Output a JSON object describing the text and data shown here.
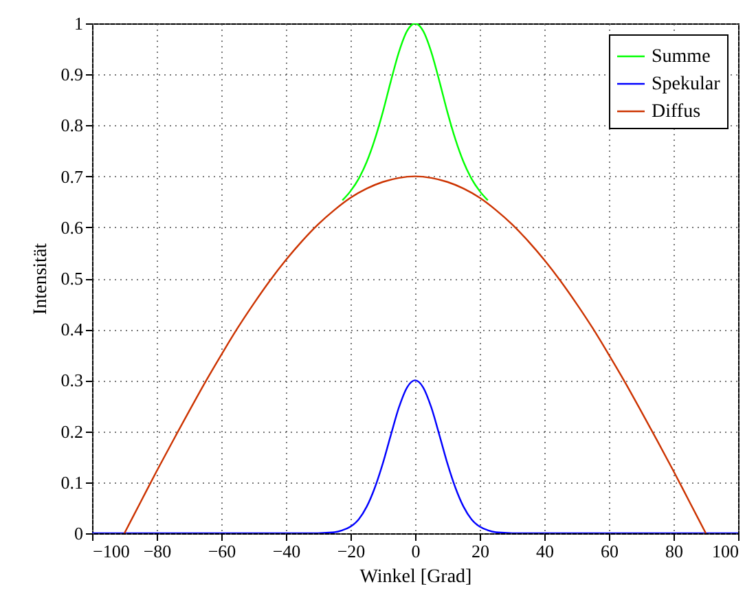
{
  "chart_data": {
    "type": "line",
    "xlabel": "Winkel [Grad]",
    "ylabel": "Intensität",
    "xlim": [
      -100,
      100
    ],
    "xticks": [
      -100,
      -80,
      -60,
      -40,
      -20,
      0,
      20,
      40,
      60,
      80,
      100
    ],
    "ylim": [
      0,
      1
    ],
    "yticks": [
      {
        "value": 0,
        "label": "0"
      },
      0.1,
      0.2,
      0.3,
      0.4,
      0.5,
      0.6,
      0.7,
      0.8,
      0.9,
      {
        "value": 1,
        "label": "1"
      }
    ],
    "grid": true,
    "legend": "top right",
    "marker": "none",
    "line_style": "solid",
    "series": [
      {
        "name": "Summe",
        "color": "#00ff00",
        "x": [
          -22.5,
          -20,
          -17.5,
          -15,
          -12.5,
          -10,
          -7.5,
          -5,
          -2.5,
          0,
          2.5,
          5,
          7.5,
          10,
          12.5,
          15,
          17.5,
          20,
          22.5
        ],
        "values": [
          0.653,
          0.671,
          0.695,
          0.728,
          0.772,
          0.826,
          0.887,
          0.944,
          0.985,
          1,
          0.985,
          0.944,
          0.887,
          0.826,
          0.772,
          0.728,
          0.695,
          0.671,
          0.653
        ]
      },
      {
        "name": "Spekular",
        "color": "#0000ff",
        "x": [
          -100,
          -30,
          -27.5,
          -25,
          -22.5,
          -20,
          -17.5,
          -15,
          -12.5,
          -10,
          -7.5,
          -5,
          -2.5,
          0,
          2.5,
          5,
          7.5,
          10,
          12.5,
          15,
          17.5,
          20,
          22.5,
          25,
          27.5,
          30,
          100
        ],
        "values": [
          0,
          0,
          0.001,
          0.002,
          0.006,
          0.013,
          0.027,
          0.052,
          0.089,
          0.137,
          0.193,
          0.247,
          0.286,
          0.3,
          0.286,
          0.247,
          0.193,
          0.137,
          0.089,
          0.052,
          0.027,
          0.013,
          0.006,
          0.002,
          0.001,
          0,
          0
        ]
      },
      {
        "name": "Diffus",
        "color": "#cc3300",
        "x": [
          -90,
          -85,
          -80,
          -75,
          -70,
          -65,
          -60,
          -55,
          -50,
          -45,
          -40,
          -35,
          -30,
          -25,
          -20,
          -15,
          -10,
          -5,
          0,
          5,
          10,
          15,
          20,
          25,
          30,
          35,
          40,
          45,
          50,
          55,
          60,
          65,
          70,
          75,
          80,
          85,
          90
        ],
        "values": [
          0,
          0.061,
          0.122,
          0.181,
          0.239,
          0.296,
          0.35,
          0.402,
          0.45,
          0.495,
          0.536,
          0.573,
          0.606,
          0.634,
          0.658,
          0.676,
          0.689,
          0.697,
          0.7,
          0.697,
          0.689,
          0.676,
          0.658,
          0.634,
          0.606,
          0.573,
          0.536,
          0.495,
          0.45,
          0.402,
          0.35,
          0.296,
          0.239,
          0.181,
          0.122,
          0.061,
          0
        ]
      }
    ]
  }
}
